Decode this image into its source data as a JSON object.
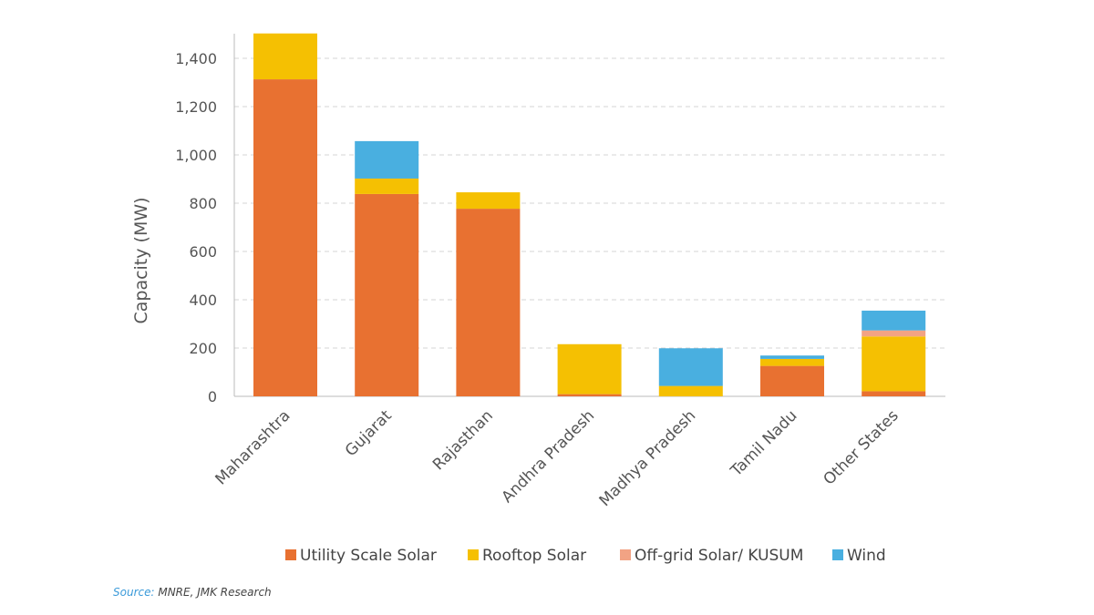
{
  "chart_data": {
    "type": "bar",
    "stacked": true,
    "categories": [
      "Maharashtra",
      "Gujarat",
      "Rajasthan",
      "Andhra Pradesh",
      "Madhya Pradesh",
      "Tamil Nadu",
      "Other States"
    ],
    "series": [
      {
        "name": "Utility Scale Solar",
        "color": "#e87131",
        "values": [
          1313,
          838,
          777,
          9,
          0,
          126,
          21
        ]
      },
      {
        "name": "Rooftop Solar",
        "color": "#f5c002",
        "values": [
          190,
          64,
          68,
          207,
          43,
          29,
          227
        ]
      },
      {
        "name": "Off-grid Solar/ KUSUM",
        "color": "#f2a384",
        "values": [
          0,
          0,
          0,
          0,
          0,
          0,
          25
        ]
      },
      {
        "name": "Wind",
        "color": "#49afe0",
        "values": [
          0,
          155,
          0,
          0,
          156,
          14,
          82
        ]
      }
    ],
    "ylabel": "Capacity (MW)",
    "xlabel": "",
    "ylim": [
      0,
      1500
    ],
    "yticks": [
      0,
      200,
      400,
      600,
      800,
      1000,
      1200,
      1400
    ],
    "ytick_labels": [
      "0",
      "200",
      "400",
      "600",
      "800",
      "1,000",
      "1,200",
      "1,400"
    ],
    "grid": true,
    "legend_position": "bottom"
  },
  "source": {
    "label": "Source:",
    "text": " MNRE, JMK Research"
  }
}
